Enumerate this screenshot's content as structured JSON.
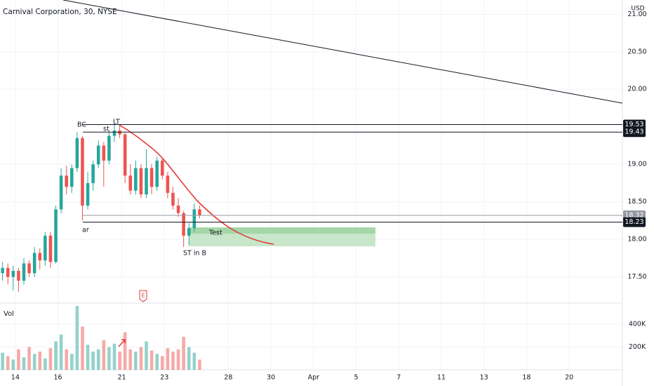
{
  "chart_data": {
    "type": "candlestick",
    "title": "Carnival Corporation, 30, NYSE",
    "currency": "USD",
    "volume_label": "Vol",
    "annotations": [
      "BC",
      "st",
      "LT",
      "ar",
      "ST in B",
      "Test",
      "E"
    ],
    "x": [
      -0.6,
      -0.35,
      -0.1,
      0.15,
      0.4,
      0.65,
      0.9,
      1.15,
      1.4,
      1.65,
      1.9,
      2.15,
      2.4,
      2.65,
      2.9,
      3.15,
      3.4,
      3.65,
      3.9,
      4.15,
      4.4,
      4.65,
      4.9,
      5.15,
      5.4,
      5.65,
      5.9,
      6.15,
      6.4,
      6.65,
      6.9,
      7.15,
      7.4,
      7.65,
      7.9,
      8.15,
      8.4,
      8.65
    ],
    "open": [
      17.55,
      17.62,
      17.5,
      17.58,
      17.45,
      17.68,
      17.55,
      17.82,
      17.72,
      18.05,
      17.7,
      18.4,
      18.85,
      18.7,
      18.95,
      19.35,
      18.45,
      18.75,
      19.0,
      19.25,
      19.05,
      19.38,
      19.45,
      19.4,
      18.85,
      18.65,
      18.95,
      18.6,
      18.95,
      18.7,
      19.05,
      18.85,
      18.62,
      18.45,
      18.35,
      18.05,
      18.15,
      18.4
    ],
    "high": [
      17.7,
      17.68,
      17.65,
      17.62,
      17.75,
      17.72,
      17.9,
      17.88,
      18.1,
      18.1,
      18.45,
      18.95,
      18.98,
      19.0,
      19.43,
      19.38,
      18.9,
      19.05,
      19.32,
      19.3,
      19.45,
      19.53,
      19.52,
      19.42,
      19.0,
      19.05,
      19.0,
      19.2,
      19.0,
      19.1,
      19.08,
      18.9,
      18.7,
      18.55,
      18.38,
      18.22,
      18.48,
      18.45
    ],
    "low": [
      17.45,
      17.4,
      17.32,
      17.3,
      17.4,
      17.5,
      17.5,
      17.6,
      17.65,
      17.62,
      17.68,
      18.35,
      18.6,
      18.62,
      18.9,
      18.25,
      18.4,
      18.65,
      18.95,
      18.7,
      19.0,
      19.3,
      19.35,
      18.75,
      18.6,
      18.6,
      18.55,
      18.55,
      18.6,
      18.65,
      18.8,
      18.55,
      18.4,
      18.3,
      17.9,
      17.92,
      18.1,
      18.28
    ],
    "close": [
      17.62,
      17.5,
      17.58,
      17.45,
      17.68,
      17.55,
      17.82,
      17.72,
      18.05,
      17.7,
      18.4,
      18.85,
      18.7,
      18.95,
      19.35,
      18.45,
      18.75,
      19.0,
      19.25,
      19.05,
      19.38,
      19.45,
      19.4,
      18.85,
      18.65,
      18.95,
      18.6,
      18.95,
      18.7,
      19.05,
      18.85,
      18.62,
      18.45,
      18.35,
      18.05,
      18.15,
      18.4,
      18.32
    ],
    "volume": [
      150000,
      120000,
      90000,
      180000,
      110000,
      200000,
      140000,
      160000,
      100000,
      190000,
      250000,
      310000,
      180000,
      140000,
      560000,
      380000,
      220000,
      160000,
      180000,
      260000,
      200000,
      230000,
      160000,
      330000,
      180000,
      160000,
      200000,
      250000,
      170000,
      140000,
      120000,
      190000,
      160000,
      180000,
      290000,
      200000,
      150000,
      90000
    ],
    "up_color": "#26a69a",
    "down_color": "#ef5350",
    "levels": [
      {
        "value": 19.53,
        "color": "#131722"
      },
      {
        "value": 19.43,
        "color": "#131722"
      },
      {
        "value": 18.32,
        "color": "#9598a1"
      },
      {
        "value": 18.23,
        "color": "#131722"
      }
    ],
    "xlim": [
      -0.72,
      28.5
    ],
    "xticks": [
      {
        "value": 0,
        "label": "14"
      },
      {
        "value": 2,
        "label": "16"
      },
      {
        "value": 5,
        "label": "21"
      },
      {
        "value": 7,
        "label": "23"
      },
      {
        "value": 10,
        "label": "28"
      },
      {
        "value": 12,
        "label": "30"
      },
      {
        "value": 14,
        "label": "Apr"
      },
      {
        "value": 16,
        "label": "5"
      },
      {
        "value": 18,
        "label": "7"
      },
      {
        "value": 20,
        "label": "11"
      },
      {
        "value": 22,
        "label": "13"
      },
      {
        "value": 24,
        "label": "18"
      },
      {
        "value": 26,
        "label": "20"
      }
    ],
    "ylim": [
      17.15,
      21.19
    ],
    "yticks": [
      {
        "value": 17.5,
        "label": "17.50"
      },
      {
        "value": 18,
        "label": "18.00"
      },
      {
        "value": 18.5,
        "label": "18.50"
      },
      {
        "value": 19,
        "label": "19.00"
      },
      {
        "value": 20,
        "label": "20.00"
      },
      {
        "value": 20.5,
        "label": "20.50"
      },
      {
        "value": 21,
        "label": "21.00"
      }
    ],
    "y2lim": [
      0,
      585000
    ],
    "y2ticks": [
      {
        "value": 200000,
        "label": "200K"
      },
      {
        "value": 400000,
        "label": "400K"
      }
    ],
    "grid": true
  }
}
